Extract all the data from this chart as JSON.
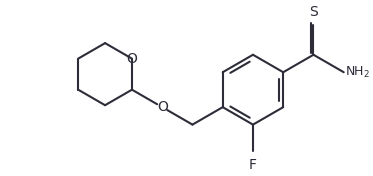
{
  "background_color": "#ffffff",
  "line_color": "#2d2d3a",
  "line_width": 1.5,
  "font_size": 9,
  "figsize": [
    3.73,
    1.76
  ],
  "dpi": 100,
  "xlim": [
    0,
    373
  ],
  "ylim": [
    0,
    176
  ]
}
